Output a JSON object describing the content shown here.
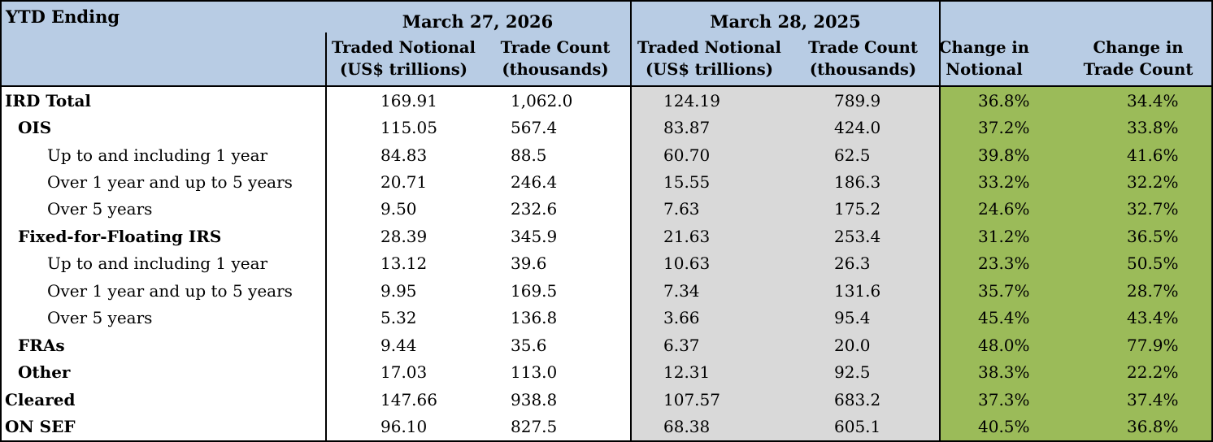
{
  "table": {
    "corner": "YTD Ending",
    "groups": [
      {
        "title": "March 27, 2026"
      },
      {
        "title": "March 28, 2025"
      },
      {
        "title": ""
      }
    ],
    "columns": [
      {
        "line1": "Traded Notional",
        "line2": "(US$ trillions)"
      },
      {
        "line1": "Trade Count",
        "line2": "(thousands)"
      },
      {
        "line1": "Traded Notional",
        "line2": "(US$ trillions)"
      },
      {
        "line1": "Trade Count",
        "line2": "(thousands)"
      },
      {
        "line1": "Change in",
        "line2": "Notional"
      },
      {
        "line1": "Change in",
        "line2": "Trade Count"
      }
    ],
    "rows": [
      {
        "label": "IRD Total",
        "bold": true,
        "indent": 0,
        "values": [
          "169.91",
          "1,062.0",
          "124.19",
          "789.9",
          "36.8%",
          "34.4%"
        ]
      },
      {
        "label": "OIS",
        "bold": true,
        "indent": 1,
        "values": [
          "115.05",
          "567.4",
          "83.87",
          "424.0",
          "37.2%",
          "33.8%"
        ]
      },
      {
        "label": "Up to and including 1 year",
        "bold": false,
        "indent": 2,
        "values": [
          "84.83",
          "88.5",
          "60.70",
          "62.5",
          "39.8%",
          "41.6%"
        ]
      },
      {
        "label": "Over 1 year and up to 5 years",
        "bold": false,
        "indent": 2,
        "values": [
          "20.71",
          "246.4",
          "15.55",
          "186.3",
          "33.2%",
          "32.2%"
        ]
      },
      {
        "label": "Over 5 years",
        "bold": false,
        "indent": 2,
        "values": [
          "9.50",
          "232.6",
          "7.63",
          "175.2",
          "24.6%",
          "32.7%"
        ]
      },
      {
        "label": "Fixed-for-Floating IRS",
        "bold": true,
        "indent": 1,
        "values": [
          "28.39",
          "345.9",
          "21.63",
          "253.4",
          "31.2%",
          "36.5%"
        ]
      },
      {
        "label": "Up to and including 1 year",
        "bold": false,
        "indent": 2,
        "values": [
          "13.12",
          "39.6",
          "10.63",
          "26.3",
          "23.3%",
          "50.5%"
        ]
      },
      {
        "label": "Over 1 year and up to 5 years",
        "bold": false,
        "indent": 2,
        "values": [
          "9.95",
          "169.5",
          "7.34",
          "131.6",
          "35.7%",
          "28.7%"
        ]
      },
      {
        "label": "Over 5 years",
        "bold": false,
        "indent": 2,
        "values": [
          "5.32",
          "136.8",
          "3.66",
          "95.4",
          "45.4%",
          "43.4%"
        ]
      },
      {
        "label": "FRAs",
        "bold": true,
        "indent": 1,
        "values": [
          "9.44",
          "35.6",
          "6.37",
          "20.0",
          "48.0%",
          "77.9%"
        ]
      },
      {
        "label": "Other",
        "bold": true,
        "indent": 1,
        "values": [
          "17.03",
          "113.0",
          "12.31",
          "92.5",
          "38.3%",
          "22.2%"
        ]
      },
      {
        "label": "Cleared",
        "bold": true,
        "indent": 0,
        "values": [
          "147.66",
          "938.8",
          "107.57",
          "683.2",
          "37.3%",
          "37.4%"
        ]
      },
      {
        "label": "ON SEF",
        "bold": true,
        "indent": 0,
        "values": [
          "96.10",
          "827.5",
          "68.38",
          "605.1",
          "40.5%",
          "36.8%"
        ]
      }
    ],
    "colors": {
      "header_bg": "#b8cce4",
      "prior_bg": "#d9d9d9",
      "change_bg": "#9bbb59",
      "border": "#000000"
    }
  }
}
